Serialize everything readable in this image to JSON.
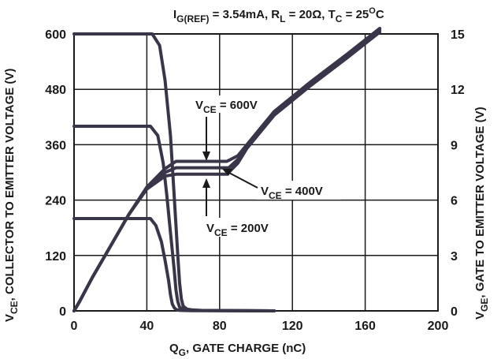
{
  "chart_data": {
    "type": "line",
    "conditions": {
      "i_main": "I",
      "i_sub": "G(REF)",
      "i_val": " = 3.54mA, ",
      "r_main": "R",
      "r_sub": "L",
      "r_val": " = 20Ω, ",
      "t_main": "T",
      "t_sub": "C",
      "t_val": " = 25",
      "t_sup": "O",
      "t_unit": "C"
    },
    "xlabel": {
      "main": "Q",
      "sub": "G",
      "rest": ", GATE CHARGE (nC)"
    },
    "ylabel_left": {
      "main": "V",
      "sub": "CE",
      "rest": ", COLLECTOR TO EMITTER  VOLTAGE (V)"
    },
    "ylabel_right": {
      "main": "V",
      "sub": "GE",
      "rest": ", GATE TO EMITTER VOLTAGE (V)"
    },
    "xlim": [
      0,
      200
    ],
    "ylim_left": [
      0,
      600
    ],
    "ylim_right": [
      0,
      15
    ],
    "x_ticks": [
      "0",
      "40",
      "80",
      "120",
      "160",
      "200"
    ],
    "y_left_ticks": [
      "0",
      "120",
      "240",
      "360",
      "480",
      "600"
    ],
    "y_right_ticks": [
      "0",
      "3",
      "6",
      "9",
      "12",
      "15"
    ],
    "grid": true,
    "annotations": [
      {
        "main": "V",
        "sub": "CE",
        "rest": " = 600V"
      },
      {
        "main": "V",
        "sub": "CE",
        "rest": " = 400V"
      },
      {
        "main": "V",
        "sub": "CE",
        "rest": " = 200V"
      }
    ],
    "series": [
      {
        "axis": "left",
        "x": [
          0,
          43,
          47,
          50,
          53,
          55,
          57,
          58,
          59,
          60,
          62,
          65,
          70,
          110
        ],
        "y": [
          600,
          600,
          575,
          500,
          380,
          250,
          120,
          60,
          25,
          10,
          4,
          2,
          1,
          0
        ]
      },
      {
        "axis": "left",
        "x": [
          0,
          42,
          46,
          49,
          51,
          53,
          55,
          56,
          57,
          58,
          60,
          65,
          110
        ],
        "y": [
          400,
          400,
          380,
          320,
          250,
          170,
          90,
          45,
          20,
          8,
          3,
          1,
          0
        ]
      },
      {
        "axis": "left",
        "x": [
          0,
          42,
          45,
          48,
          50,
          52,
          53,
          54,
          55,
          56,
          58,
          65,
          110
        ],
        "y": [
          200,
          200,
          185,
          150,
          110,
          65,
          35,
          15,
          7,
          3,
          1,
          0.5,
          0
        ]
      },
      {
        "axis": "right",
        "x": [
          0,
          3,
          10,
          20,
          30,
          40,
          50,
          56,
          58,
          84,
          90,
          95,
          110,
          130,
          150,
          168
        ],
        "y": [
          0,
          0.5,
          1.8,
          3.5,
          5.2,
          6.7,
          7.7,
          8.1,
          8.1,
          8.1,
          8.4,
          9,
          10.8,
          12.4,
          13.9,
          15.3
        ]
      },
      {
        "axis": "right",
        "x": [
          0,
          3,
          10,
          20,
          30,
          40,
          50,
          56,
          58,
          85,
          90,
          95,
          110,
          130,
          150,
          168
        ],
        "y": [
          0,
          0.5,
          1.8,
          3.5,
          5.2,
          6.7,
          7.5,
          7.75,
          7.75,
          7.75,
          8.2,
          8.9,
          10.7,
          12.3,
          13.8,
          15.2
        ]
      },
      {
        "axis": "right",
        "x": [
          0,
          3,
          10,
          20,
          30,
          40,
          50,
          56,
          58,
          84,
          90,
          95,
          110,
          130,
          150,
          168
        ],
        "y": [
          0,
          0.5,
          1.8,
          3.5,
          5.2,
          6.6,
          7.3,
          7.4,
          7.4,
          7.4,
          8.0,
          8.8,
          10.6,
          12.2,
          13.7,
          15.1
        ]
      }
    ]
  }
}
